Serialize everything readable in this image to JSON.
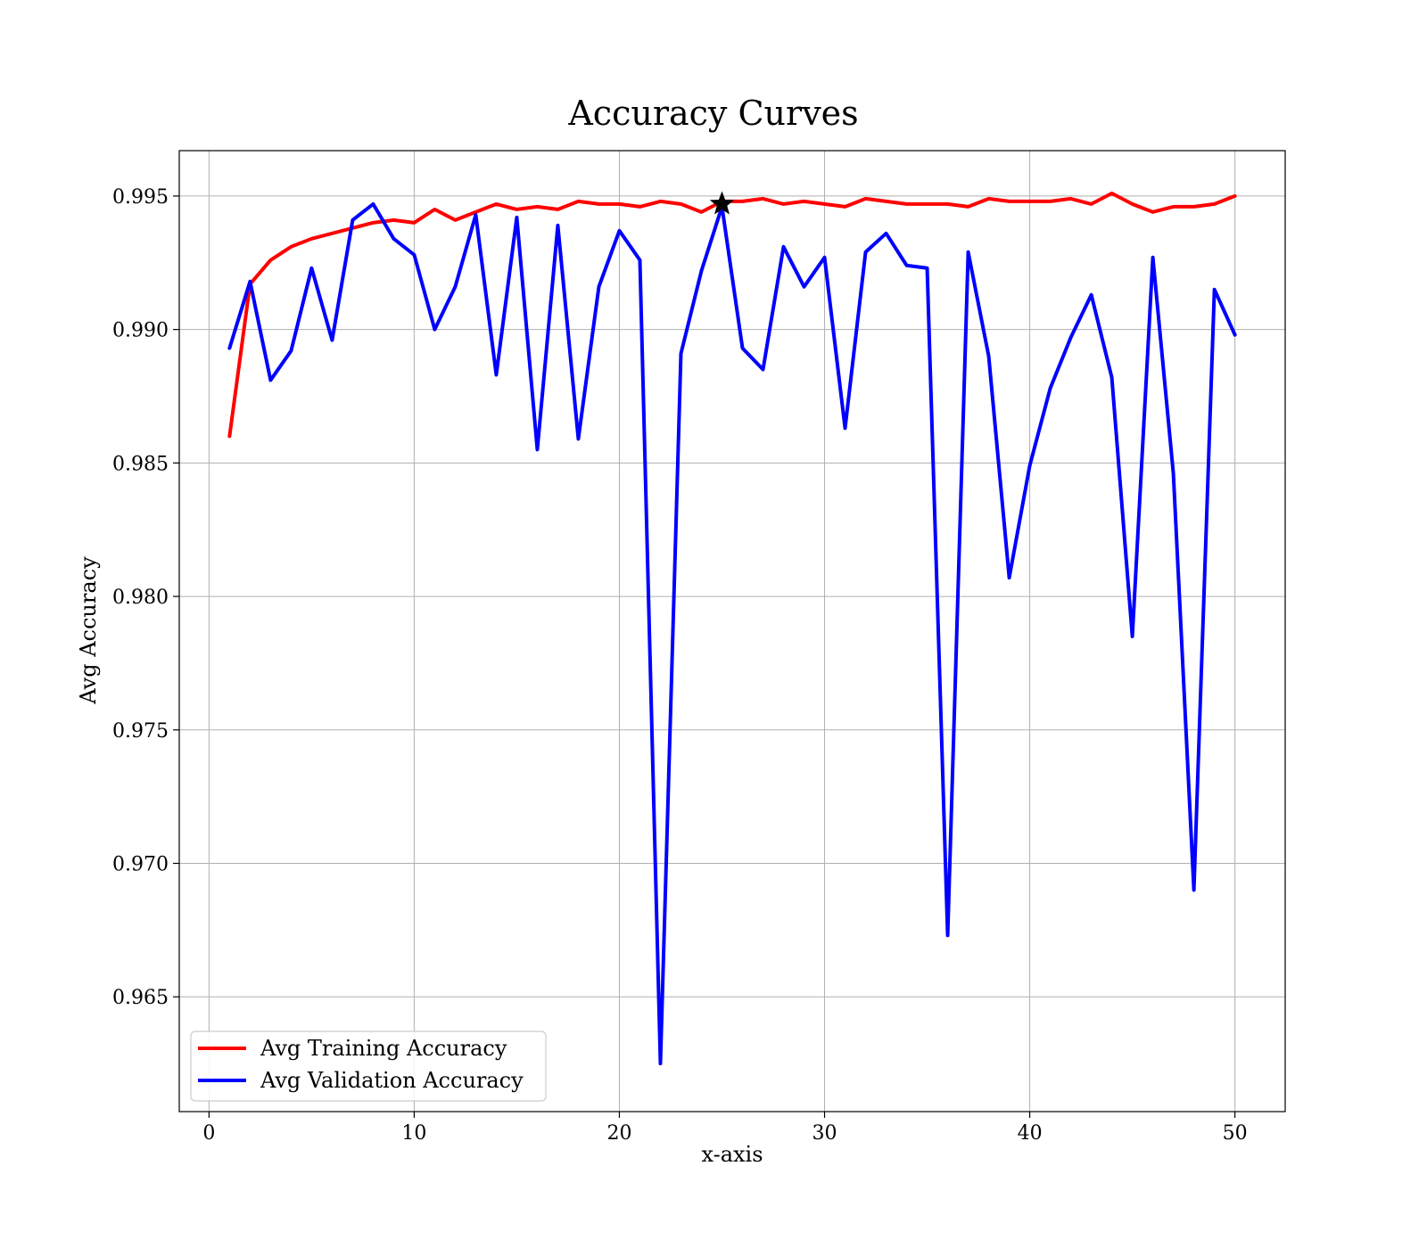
{
  "chart_data": {
    "type": "line",
    "title": "Accuracy Curves",
    "xlabel": "x-axis",
    "ylabel": "Avg Accuracy",
    "xlim": [
      -1.45,
      52.45
    ],
    "ylim": [
      0.9607,
      0.9967
    ],
    "xticks": [
      0,
      10,
      20,
      30,
      40,
      50
    ],
    "yticks": [
      0.965,
      0.97,
      0.975,
      0.98,
      0.985,
      0.99,
      0.995
    ],
    "ytick_labels": [
      "0.965",
      "0.970",
      "0.975",
      "0.980",
      "0.985",
      "0.990",
      "0.995"
    ],
    "grid": true,
    "legend_position": "lower-left",
    "x": [
      1,
      2,
      3,
      4,
      5,
      6,
      7,
      8,
      9,
      10,
      11,
      12,
      13,
      14,
      15,
      16,
      17,
      18,
      19,
      20,
      21,
      22,
      23,
      24,
      25,
      26,
      27,
      28,
      29,
      30,
      31,
      32,
      33,
      34,
      35,
      36,
      37,
      38,
      39,
      40,
      41,
      42,
      43,
      44,
      45,
      46,
      47,
      48,
      49,
      50
    ],
    "series": [
      {
        "name": "Avg Training Accuracy",
        "color": "#ff0000",
        "values": [
          0.986,
          0.9917,
          0.9926,
          0.9931,
          0.9934,
          0.9936,
          0.9938,
          0.994,
          0.9941,
          0.994,
          0.9945,
          0.9941,
          0.9944,
          0.9947,
          0.9945,
          0.9946,
          0.9945,
          0.9948,
          0.9947,
          0.9947,
          0.9946,
          0.9948,
          0.9947,
          0.9944,
          0.9948,
          0.9948,
          0.9949,
          0.9947,
          0.9948,
          0.9947,
          0.9946,
          0.9949,
          0.9948,
          0.9947,
          0.9947,
          0.9947,
          0.9946,
          0.9949,
          0.9948,
          0.9948,
          0.9948,
          0.9949,
          0.9947,
          0.9951,
          0.9947,
          0.9944,
          0.9946,
          0.9946,
          0.9947,
          0.995
        ]
      },
      {
        "name": "Avg Validation Accuracy",
        "color": "#0000ff",
        "values": [
          0.9893,
          0.9918,
          0.9881,
          0.9892,
          0.9923,
          0.9896,
          0.9941,
          0.9947,
          0.9934,
          0.9928,
          0.99,
          0.9916,
          0.9943,
          0.9883,
          0.9942,
          0.9855,
          0.9939,
          0.9859,
          0.9916,
          0.9937,
          0.9926,
          0.9625,
          0.9891,
          0.9922,
          0.9946,
          0.9893,
          0.9885,
          0.9931,
          0.9916,
          0.9927,
          0.9863,
          0.9929,
          0.9936,
          0.9924,
          0.9923,
          0.9673,
          0.9929,
          0.989,
          0.9807,
          0.9849,
          0.9878,
          0.9897,
          0.9913,
          0.9882,
          0.9785,
          0.9927,
          0.9846,
          0.969,
          0.9915,
          0.9898
        ]
      }
    ],
    "marker": {
      "shape": "star",
      "x": 25,
      "y": 0.9947,
      "color": "#000000"
    }
  }
}
